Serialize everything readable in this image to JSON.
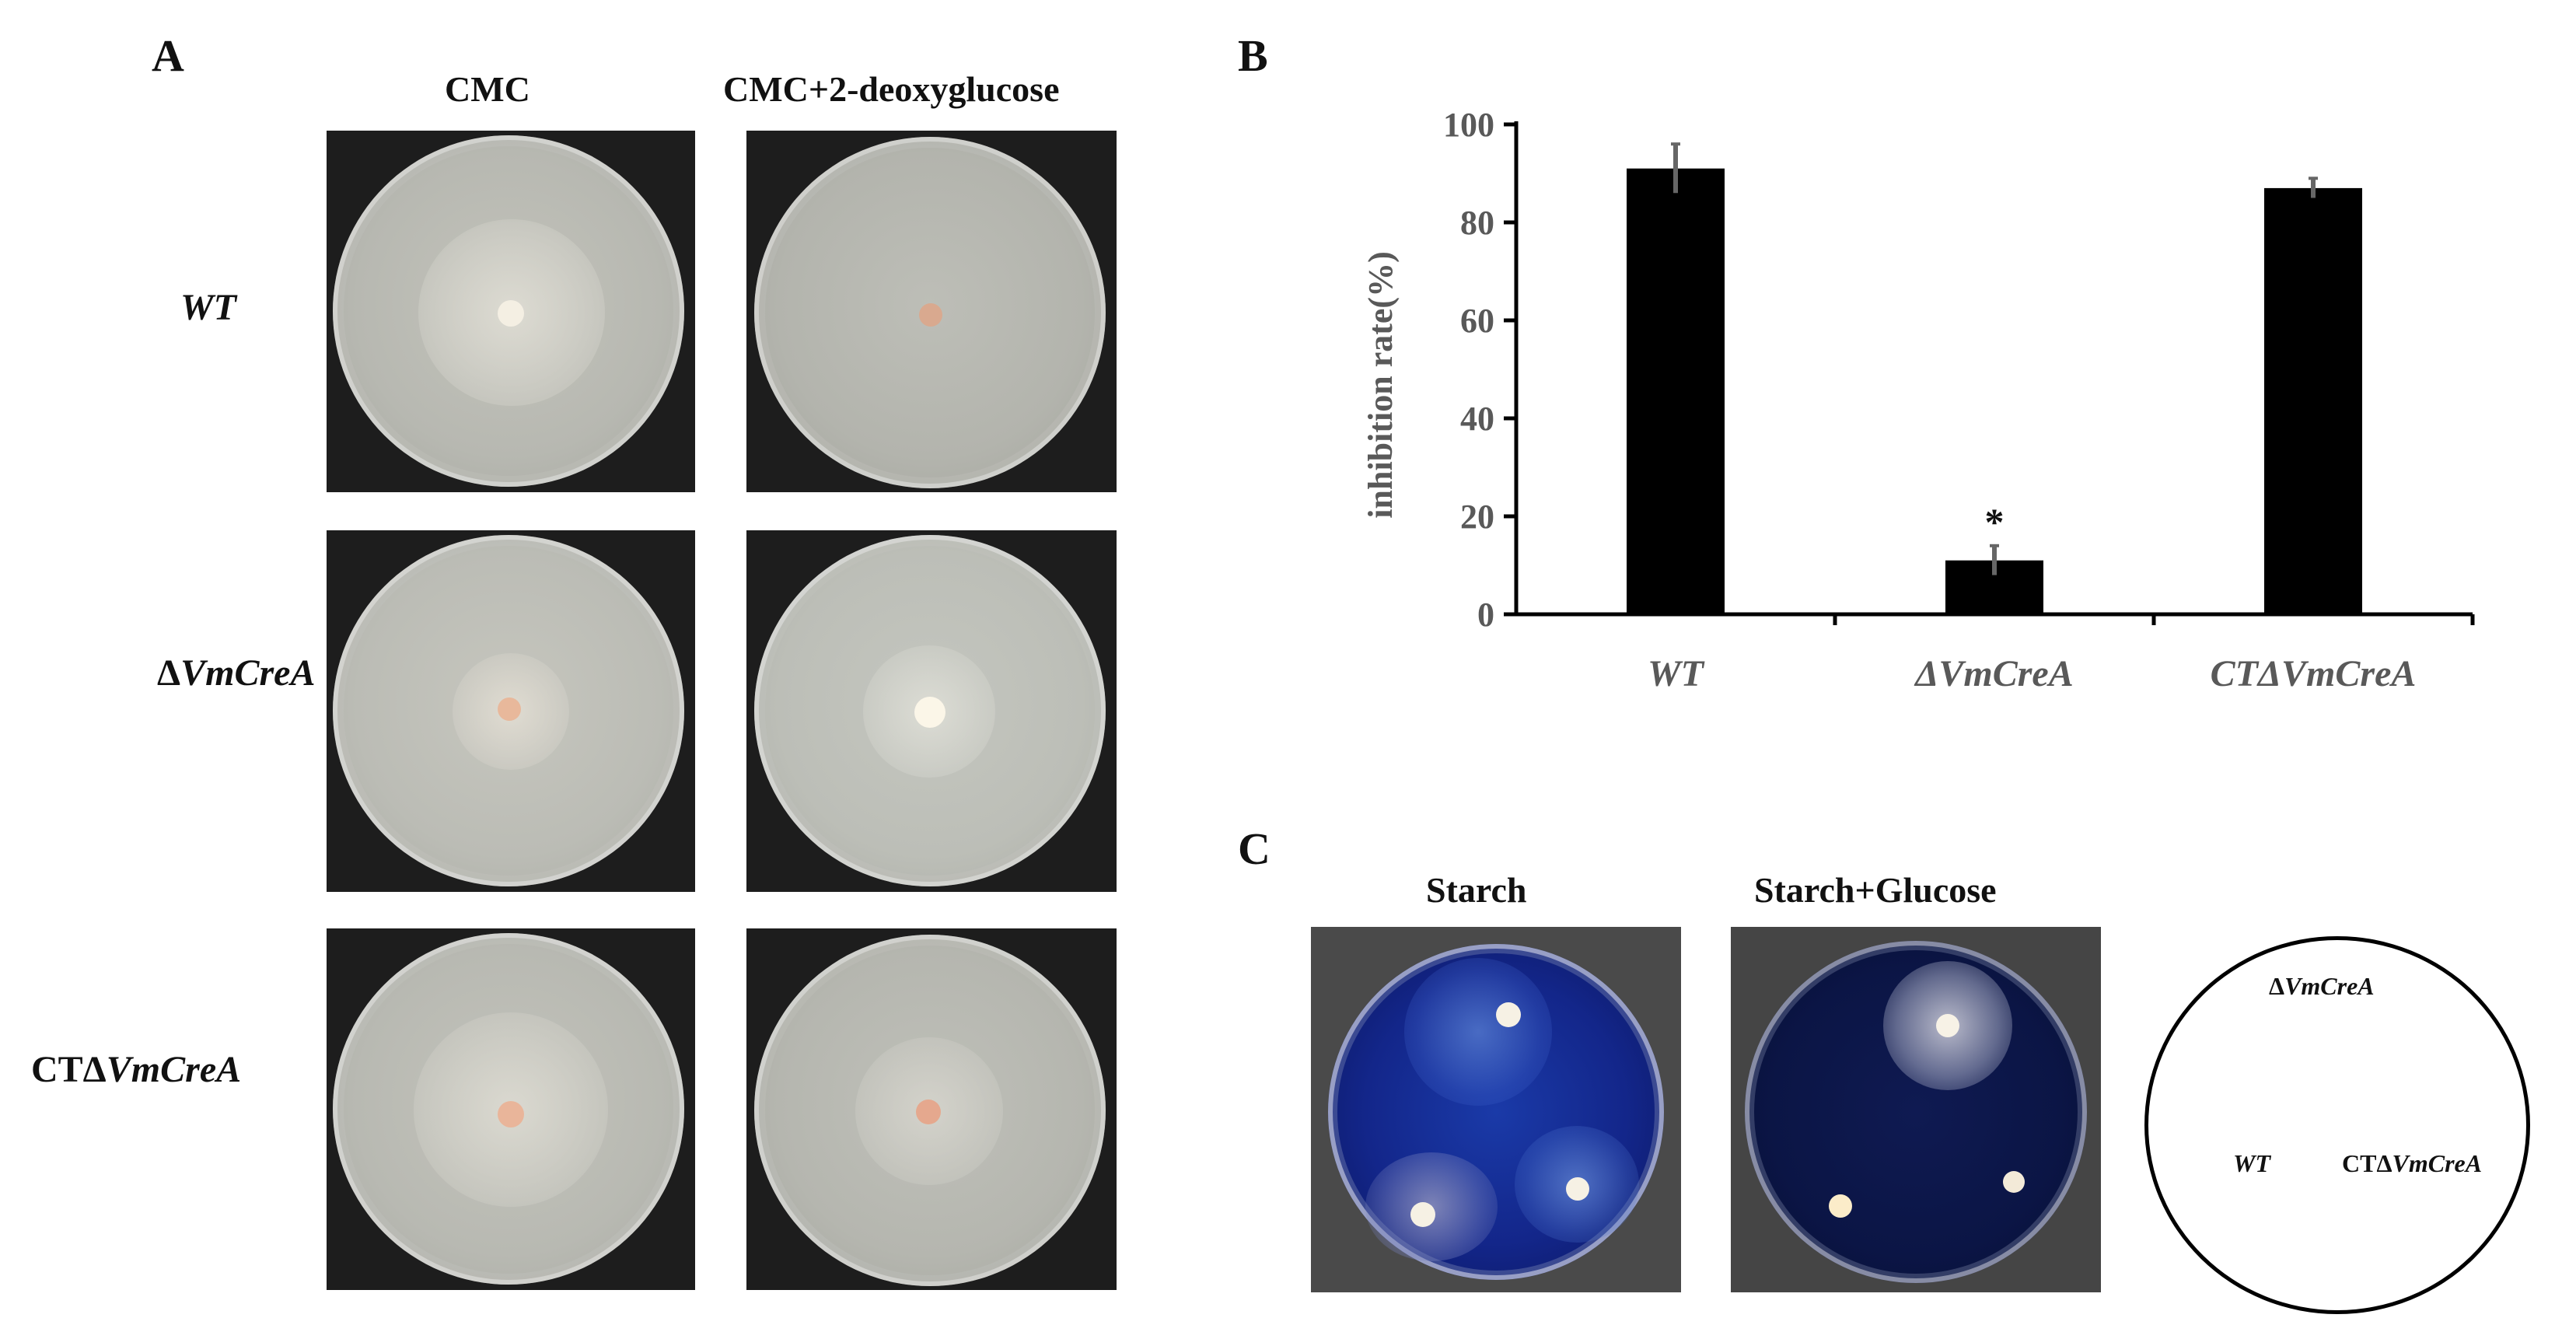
{
  "panels": {
    "A": {
      "letter": "A",
      "col_headers": [
        "CMC",
        "CMC+2-deoxyglucose"
      ],
      "rows": [
        {
          "prefix": "",
          "italic": "WT"
        },
        {
          "prefix": "Δ",
          "italic": "VmCreA"
        },
        {
          "prefix": "CTΔ",
          "italic": "VmCreA"
        }
      ]
    },
    "B": {
      "letter": "B"
    },
    "C": {
      "letter": "C",
      "col_headers": [
        "Starch",
        "Starch+Glucose"
      ],
      "diagram_labels": {
        "top": {
          "prefix": "Δ",
          "italic": "VmCreA"
        },
        "left": {
          "prefix": "",
          "italic": "WT"
        },
        "right": {
          "prefix": "CTΔ",
          "italic": "VmCreA"
        }
      }
    }
  },
  "chart_data": {
    "type": "bar",
    "categories": [
      "WT",
      "ΔVmCreA",
      "CTΔVmCreA"
    ],
    "values": [
      91,
      11,
      87
    ],
    "errors": [
      5,
      3,
      2
    ],
    "significance": [
      "",
      "*",
      ""
    ],
    "ylabel": "inhibition rate(%)",
    "xlabel": "",
    "ylim": [
      0,
      100
    ],
    "yticks": [
      0,
      20,
      40,
      60,
      80,
      100
    ],
    "colors": {
      "bar": "#000000",
      "axis": "#000000",
      "tick_label": "#595959"
    }
  }
}
